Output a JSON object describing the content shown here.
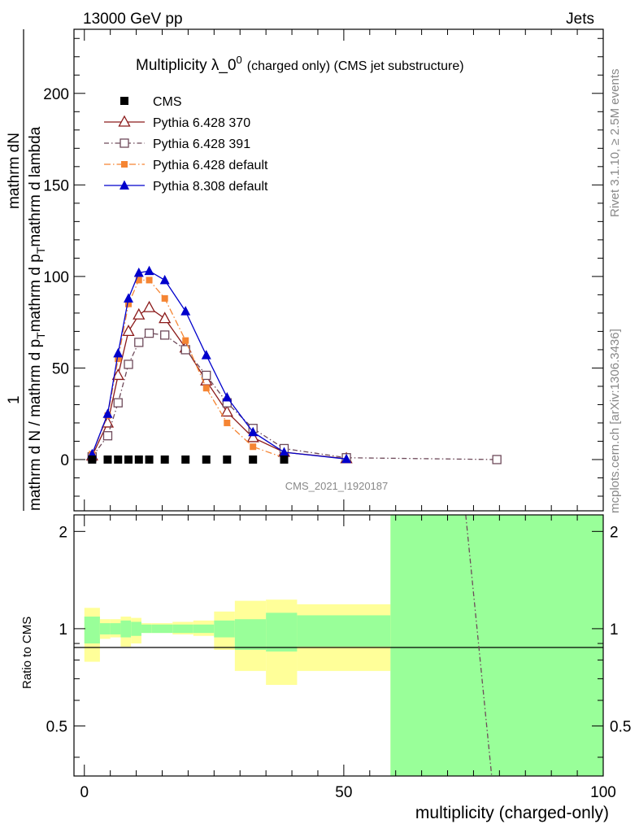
{
  "header": {
    "left": "13000 GeV pp",
    "right": "Jets"
  },
  "side_labels": {
    "rivet": "Rivet 3.1.10, ≥ 2.5M events",
    "mcplots": "mcplots.cern.ch [arXiv:1306.3436]"
  },
  "analysis_id": "CMS_2021_I1920187",
  "colors": {
    "cms": "#000000",
    "p370": "#8b1a1a",
    "p391": "#6e4a5a",
    "pdef": "#f58533",
    "p8": "#0000cc",
    "band_inner": "#99ff99",
    "band_outer": "#ffff99"
  },
  "chart_data": [
    {
      "type": "line",
      "title_main": "Multiplicity λ_0",
      "title_sup": "0",
      "title_note": "(charged only) (CMS jet substructure)",
      "ylabel_top": "1",
      "ylabel_top_line": "mathrm dN",
      "ylabel_bottom": "mathrm d N / mathrm d p",
      "ylabel_bottom_sub": "T",
      "ylabel_bottom_tail": "mathrm d p",
      "ylabel_bottom_sub2": "T",
      "ylabel_bottom_end": "mathrm d lambda",
      "ylabel_full": "mathrm d N / mathrm d p_T mathrm d p_T mathrm d lambda",
      "ylim": [
        -28,
        235
      ],
      "xlim": [
        -2,
        100
      ],
      "yticks": [
        0,
        50,
        100,
        150,
        200
      ],
      "series": [
        {
          "name": "CMS",
          "marker": "square-filled",
          "x": [
            1.5,
            4.5,
            6.5,
            8.5,
            10.5,
            12.5,
            15.5,
            19.5,
            23.5,
            27.5,
            32.5,
            38.5
          ],
          "y": [
            0,
            0,
            0,
            0,
            0,
            0,
            0,
            0,
            0,
            0,
            0,
            0
          ]
        },
        {
          "name": "Pythia 6.428 370",
          "marker": "triangle-open",
          "x": [
            1.5,
            4.5,
            6.5,
            8.5,
            10.5,
            12.5,
            15.5,
            19.5,
            23.5,
            27.5,
            32.5,
            38.5,
            50.5
          ],
          "y": [
            2,
            20,
            46,
            70,
            79,
            83,
            77,
            61,
            43,
            26,
            12,
            4,
            0.5
          ]
        },
        {
          "name": "Pythia 6.428 391",
          "marker": "square-open",
          "x": [
            1.5,
            4.5,
            6.5,
            8.5,
            10.5,
            12.5,
            15.5,
            19.5,
            23.5,
            27.5,
            32.5,
            38.5,
            50.5,
            79.5
          ],
          "y": [
            1.5,
            13,
            31,
            52,
            64,
            69,
            68,
            60,
            46,
            31,
            17,
            6,
            1,
            0
          ]
        },
        {
          "name": "Pythia 6.428 default",
          "marker": "square-filled-small",
          "x": [
            1.5,
            4.5,
            6.5,
            8.5,
            10.5,
            12.5,
            15.5,
            19.5,
            23.5,
            27.5,
            32.5,
            38.5
          ],
          "y": [
            3,
            24,
            55,
            85,
            98,
            98,
            88,
            65,
            39,
            20,
            7,
            1
          ]
        },
        {
          "name": "Pythia 8.308 default",
          "marker": "triangle-filled",
          "x": [
            1.5,
            4.5,
            6.5,
            8.5,
            10.5,
            12.5,
            15.5,
            19.5,
            23.5,
            27.5,
            32.5,
            38.5,
            50.5
          ],
          "y": [
            3,
            25,
            58,
            88,
            102,
            103,
            98,
            81,
            57,
            34,
            15,
            4,
            0.3
          ]
        }
      ]
    },
    {
      "type": "area",
      "ylabel": "Ratio to CMS",
      "xlabel": "multiplicity (charged-only)",
      "xlim": [
        -2,
        100
      ],
      "ylim": [
        0.35,
        2.25
      ],
      "xticks": [
        0,
        50,
        100
      ],
      "yticks": [
        0.5,
        1,
        2
      ],
      "reference_line": 1,
      "bins": [
        0,
        3,
        5,
        7,
        9,
        11,
        13,
        17,
        21,
        25,
        29,
        35,
        41,
        59,
        100
      ],
      "inner_band_low": [
        0.9,
        0.96,
        0.96,
        0.94,
        0.95,
        0.97,
        0.97,
        0.97,
        0.97,
        0.94,
        0.86,
        0.85,
        0.88,
        0
      ],
      "inner_band_high": [
        1.09,
        1.04,
        1.04,
        1.06,
        1.05,
        1.03,
        1.03,
        1.03,
        1.03,
        1.06,
        1.07,
        1.12,
        1.1,
        5
      ],
      "outer_band_low": [
        0.79,
        0.93,
        0.94,
        0.88,
        0.9,
        0.97,
        0.97,
        0.96,
        0.95,
        0.86,
        0.74,
        0.67,
        0.74,
        0
      ],
      "outer_band_high": [
        1.16,
        1.07,
        1.07,
        1.09,
        1.08,
        1.04,
        1.04,
        1.05,
        1.06,
        1.13,
        1.22,
        1.23,
        1.19,
        5
      ],
      "series": [
        {
          "name": "Pythia 6.428 391",
          "x": [
            73.5,
            78.5
          ],
          "y": [
            2.38,
            0.35
          ]
        }
      ]
    }
  ]
}
